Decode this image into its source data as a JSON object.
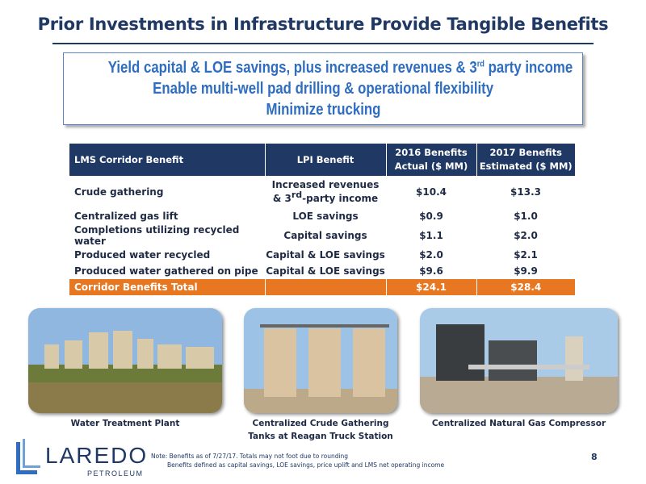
{
  "header": {
    "title": "Prior Investments in Infrastructure Provide Tangible Benefits"
  },
  "callout": {
    "line1": {
      "before": "Yield capital & LOE savings, plus increased revenues & 3",
      "superscript": "rd",
      "after": " party income"
    },
    "line2": "Enable multi-well pad drilling & operational flexibility",
    "line3": "Minimize trucking"
  },
  "table": {
    "columns": [
      {
        "lines": [
          "LMS Corridor Benefit"
        ]
      },
      {
        "lines": [
          "LPI Benefit"
        ]
      },
      {
        "lines": [
          "2016 Benefits",
          "Actual ($ MM)"
        ]
      },
      {
        "lines": [
          "2017 Benefits",
          "Estimated ($ MM)"
        ]
      }
    ],
    "first_row": {
      "benefit": "Crude gathering",
      "lpi": {
        "line1": "Increased revenues",
        "line2_before": "& 3",
        "superscript": "rd",
        "line2_after": "-party income"
      },
      "actual": "$10.4",
      "estimated": "$13.3"
    },
    "rows": [
      [
        "Centralized gas lift",
        "LOE savings",
        "$0.9",
        "$1.0"
      ],
      [
        "Completions utilizing recycled water",
        "Capital savings",
        "$1.1",
        "$2.0"
      ],
      [
        "Produced water recycled",
        "Capital & LOE savings",
        "$2.0",
        "$2.1"
      ],
      [
        "Produced water gathered on pipe",
        "Capital & LOE savings",
        "$9.6",
        "$9.9"
      ]
    ],
    "total": {
      "label": "Corridor Benefits Total",
      "actual": "$24.1",
      "estimated": "$28.4"
    }
  },
  "photos": [
    {
      "caption": [
        "Water Treatment Plant"
      ]
    },
    {
      "caption": [
        "Centralized Crude Gathering",
        "Tanks at Reagan Truck Station"
      ]
    },
    {
      "caption": [
        "Centralized Natural Gas Compressor"
      ]
    }
  ],
  "footer": {
    "logo": {
      "name": "LAREDO",
      "sub": "PETROLEUM"
    },
    "notes": [
      "Note: Benefits as of 7/27/17. Totals may not foot due to rounding",
      "Benefits defined as capital savings, LOE savings, price uplift and LMS net operating income"
    ],
    "page": "8"
  }
}
